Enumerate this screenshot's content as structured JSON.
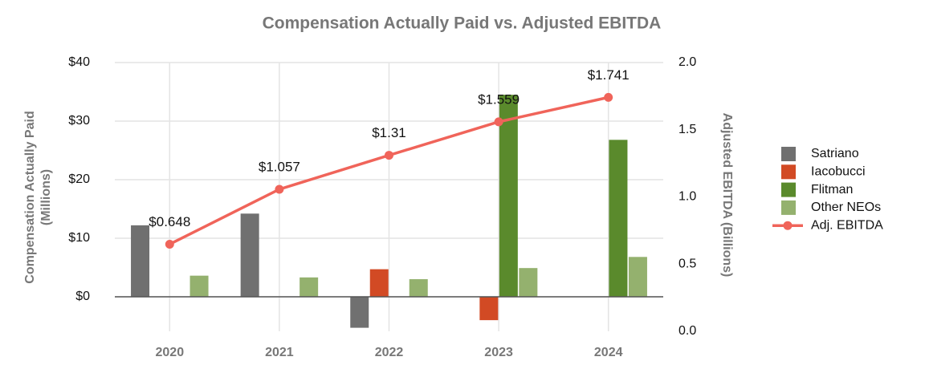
{
  "chart_data": {
    "type": "bar",
    "title": "Compensation Actually Paid vs. Adjusted EBITDA",
    "ylabel": [
      "Compensation Actually Paid",
      "(Millions)"
    ],
    "y2label": "Adjusted EBITDA (Billions)",
    "categories": [
      "2020",
      "2021",
      "2022",
      "2023",
      "2024"
    ],
    "series": [
      {
        "name": "Satriano",
        "color": "#707070",
        "values": [
          12.2,
          14.2,
          -5.3,
          null,
          null
        ]
      },
      {
        "name": "Iacobucci",
        "color": "#d24a24",
        "values": [
          null,
          null,
          4.7,
          -4.0,
          null
        ]
      },
      {
        "name": "Flitman",
        "color": "#5a8a2c",
        "values": [
          null,
          null,
          null,
          34.5,
          26.8
        ]
      },
      {
        "name": "Other NEOs",
        "color": "#94b16e",
        "values": [
          3.6,
          3.3,
          3.0,
          4.9,
          6.8
        ]
      },
      {
        "name": "Adj. EBITDA",
        "color": "#f0645a",
        "type": "line",
        "axis": "y2",
        "values": [
          0.648,
          1.057,
          1.31,
          1.559,
          1.741
        ],
        "value_labels": [
          "$0.648",
          "$1.057",
          "$1.31",
          "$1.559",
          "$1.741"
        ]
      }
    ],
    "ylim": [
      -5.9,
      40
    ],
    "yticks": [
      {
        "value": 0,
        "label": "$0"
      },
      {
        "value": 10,
        "label": "$10"
      },
      {
        "value": 20,
        "label": "$20"
      },
      {
        "value": 30,
        "label": "$30"
      },
      {
        "value": 40,
        "label": "$40"
      }
    ],
    "y2lim": [
      0,
      2
    ],
    "y2ticks": [
      {
        "value": 0,
        "label": "0.0"
      },
      {
        "value": 0.5,
        "label": "0.5"
      },
      {
        "value": 1,
        "label": "1.0"
      },
      {
        "value": 1.5,
        "label": "1.5"
      },
      {
        "value": 2,
        "label": "2.0"
      }
    ],
    "grid": true,
    "legend": "right"
  }
}
